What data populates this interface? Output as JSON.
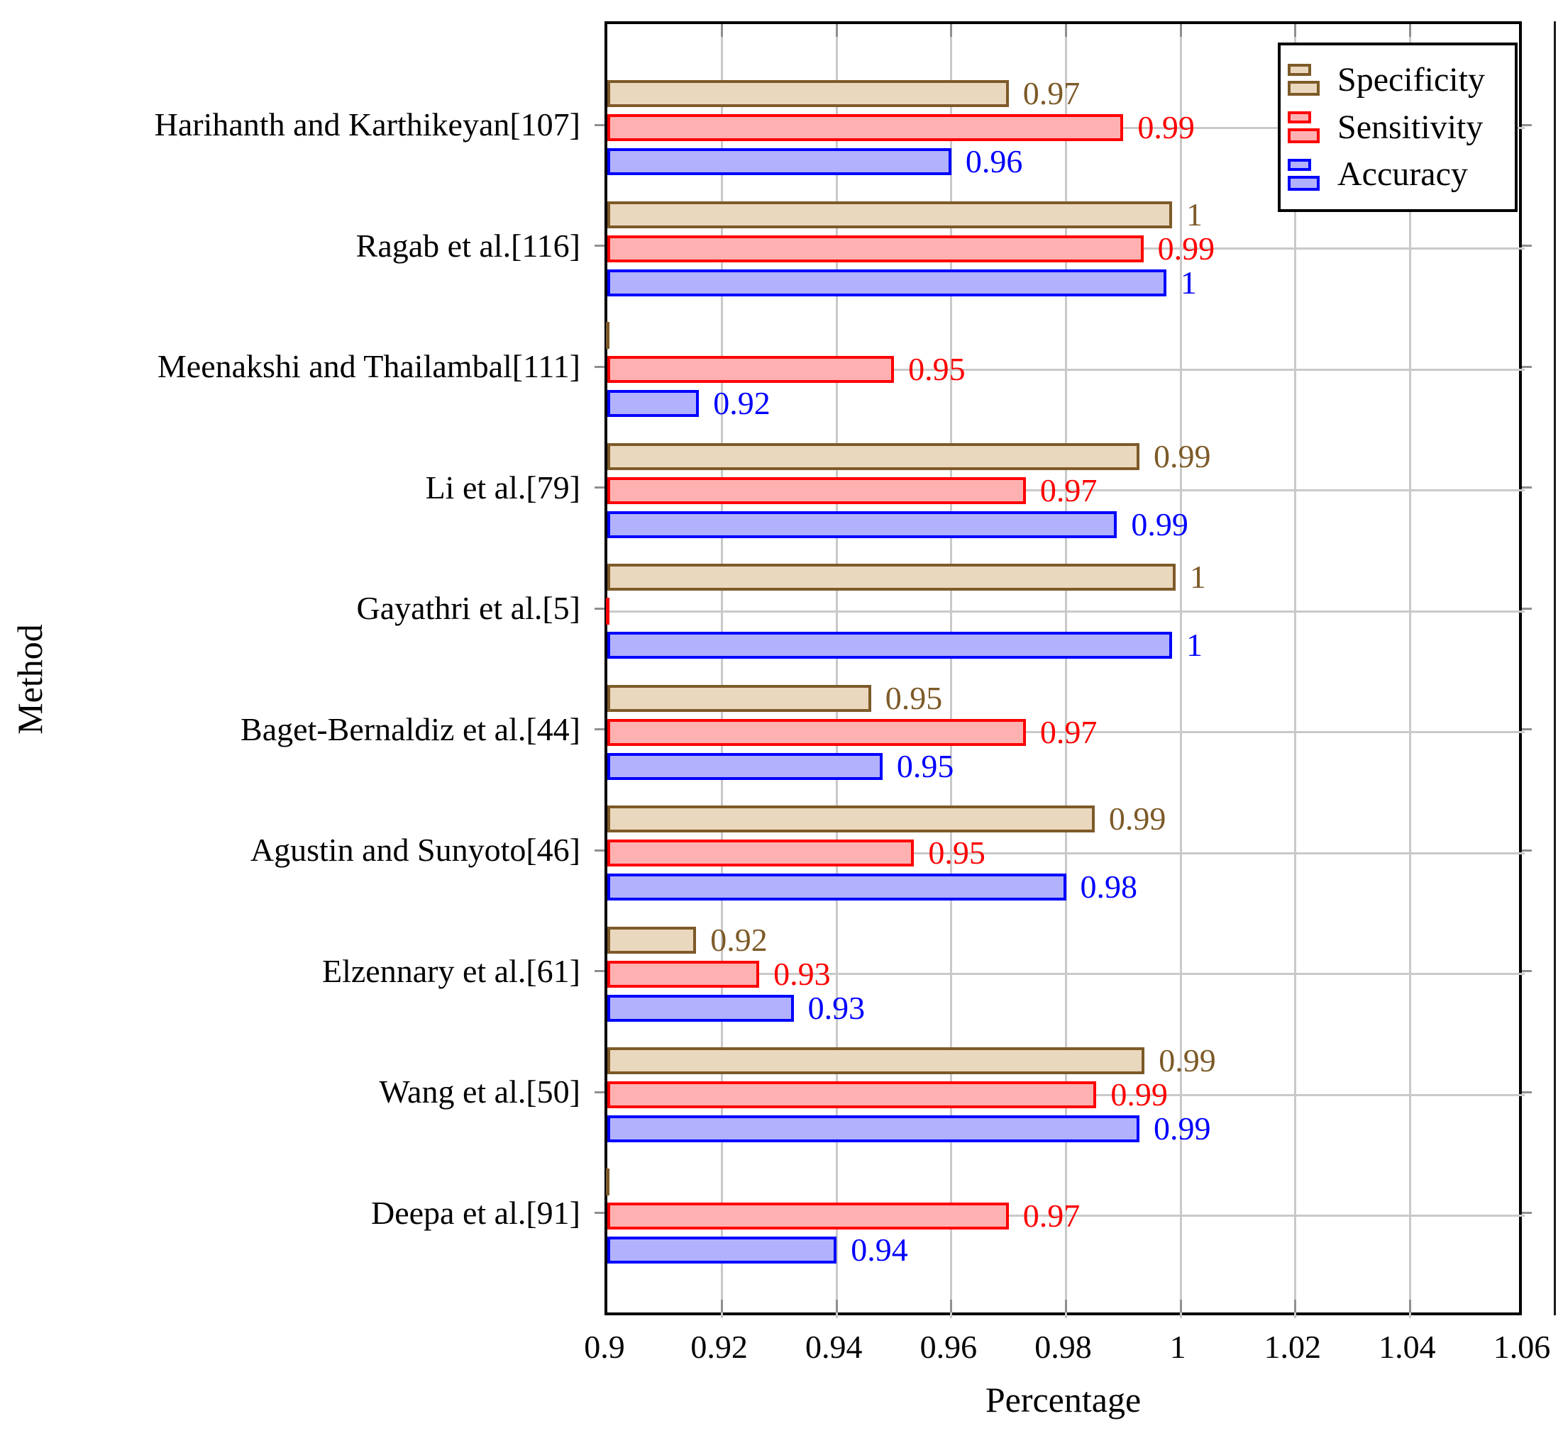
{
  "chart_data": {
    "type": "bar",
    "orientation": "horizontal",
    "title": "",
    "xlabel": "Percentage",
    "ylabel": "Method",
    "xlim": [
      0.9,
      1.06
    ],
    "x_tick_labels": [
      "0.9",
      "0.92",
      "0.94",
      "0.96",
      "0.98",
      "1",
      "1.02",
      "1.04",
      "1.06"
    ],
    "x_tick_values": [
      0.9,
      0.92,
      0.94,
      0.96,
      0.98,
      1.0,
      1.02,
      1.04,
      1.06
    ],
    "grid": true,
    "legend_position": "top-right",
    "categories": [
      "Harihanth and Karthikeyan[107]",
      "Ragab et al.[116]",
      "Meenakshi and Thailambal[111]",
      "Li et al.[79]",
      "Gayathri et al.[5]",
      "Baget-Bernaldiz et al.[44]",
      "Agustin and Sunyoto[46]",
      "Elzennary et al.[61]",
      "Wang et al.[50]",
      "Deepa et al.[91]"
    ],
    "series": [
      {
        "name": "Specificity",
        "fill": "#EAD8BE",
        "stroke": "#7D5A28",
        "values": [
          0.97,
          1,
          null,
          0.99,
          1,
          0.95,
          0.99,
          0.92,
          0.99,
          null
        ],
        "labels": [
          "0.97",
          "1",
          "",
          "0.99",
          "1",
          "0.95",
          "0.99",
          "0.92",
          "0.99",
          ""
        ],
        "bar_lengths": [
          0.97,
          0.9985,
          0,
          0.9928,
          0.9991,
          0.946,
          0.985,
          0.9155,
          0.9937,
          0
        ]
      },
      {
        "name": "Sensitivity",
        "fill": "#FFB1B1",
        "stroke": "#FE0000",
        "values": [
          0.99,
          0.99,
          0.95,
          0.97,
          null,
          0.97,
          0.95,
          0.93,
          0.99,
          0.97
        ],
        "labels": [
          "0.99",
          "0.99",
          "0.95",
          "0.97",
          "",
          "0.97",
          "0.95",
          "0.93",
          "0.99",
          "0.97"
        ],
        "bar_lengths": [
          0.99,
          0.9935,
          0.95,
          0.973,
          0,
          0.973,
          0.9535,
          0.9265,
          0.9853,
          0.97
        ]
      },
      {
        "name": "Accuracy",
        "fill": "#B1B1FE",
        "stroke": "#0100FE",
        "values": [
          0.96,
          1,
          0.92,
          0.99,
          1,
          0.95,
          0.98,
          0.93,
          0.99,
          0.94
        ],
        "labels": [
          "0.96",
          "1",
          "0.92",
          "0.99",
          "1",
          "0.95",
          "0.98",
          "0.93",
          "0.99",
          "0.94"
        ],
        "bar_lengths": [
          0.96,
          0.9975,
          0.916,
          0.9889,
          0.9985,
          0.948,
          0.98,
          0.9325,
          0.9928,
          0.94
        ]
      }
    ],
    "colors": {
      "grid": "#C9C9C9",
      "axis": "#000000",
      "specificity_fill": "#EAD8BE",
      "specificity_stroke": "#7D5A28",
      "sensitivity_fill": "#FFB1B1",
      "sensitivity_stroke": "#FE0000",
      "accuracy_fill": "#B1B1FE",
      "accuracy_stroke": "#0100FE"
    }
  }
}
